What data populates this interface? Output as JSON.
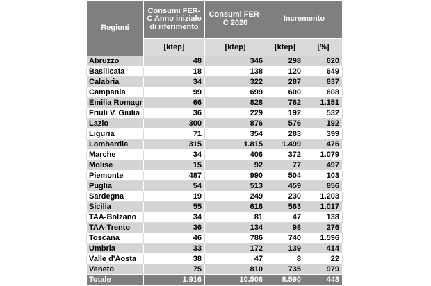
{
  "header": {
    "regioni": "Regioni",
    "consumi_base": "Consumi FER-C Anno iniziale di riferimento",
    "consumi_2020": "Consumi FER-C 2020",
    "incremento": "Incremento",
    "unit_ktep_1": "[ktep]",
    "unit_ktep_2": "[ktep]",
    "unit_ktep_3": "[ktep]",
    "unit_pct": "[%]"
  },
  "rows": [
    {
      "regione": "Abruzzo",
      "base": "48",
      "y2020": "346",
      "inc_ktep": "298",
      "inc_pct": "620"
    },
    {
      "regione": "Basilicata",
      "base": "18",
      "y2020": "138",
      "inc_ktep": "120",
      "inc_pct": "649"
    },
    {
      "regione": "Calabria",
      "base": "34",
      "y2020": "322",
      "inc_ktep": "287",
      "inc_pct": "837"
    },
    {
      "regione": "Campania",
      "base": "99",
      "y2020": "699",
      "inc_ktep": "600",
      "inc_pct": "608"
    },
    {
      "regione": "Emilia Romagna",
      "base": "66",
      "y2020": "828",
      "inc_ktep": "762",
      "inc_pct": "1.151"
    },
    {
      "regione": "Friuli V. Giulia",
      "base": "36",
      "y2020": "229",
      "inc_ktep": "192",
      "inc_pct": "532"
    },
    {
      "regione": "Lazio",
      "base": "300",
      "y2020": "876",
      "inc_ktep": "576",
      "inc_pct": "192"
    },
    {
      "regione": "Liguria",
      "base": "71",
      "y2020": "354",
      "inc_ktep": "283",
      "inc_pct": "399"
    },
    {
      "regione": "Lombardia",
      "base": "315",
      "y2020": "1.815",
      "inc_ktep": "1.499",
      "inc_pct": "476"
    },
    {
      "regione": "Marche",
      "base": "34",
      "y2020": "406",
      "inc_ktep": "372",
      "inc_pct": "1.079"
    },
    {
      "regione": "Molise",
      "base": "15",
      "y2020": "92",
      "inc_ktep": "77",
      "inc_pct": "497"
    },
    {
      "regione": "Piemonte",
      "base": "487",
      "y2020": "990",
      "inc_ktep": "504",
      "inc_pct": "103"
    },
    {
      "regione": "Puglia",
      "base": "54",
      "y2020": "513",
      "inc_ktep": "459",
      "inc_pct": "856"
    },
    {
      "regione": "Sardegna",
      "base": "19",
      "y2020": "249",
      "inc_ktep": "230",
      "inc_pct": "1.203"
    },
    {
      "regione": "Sicilia",
      "base": "55",
      "y2020": "618",
      "inc_ktep": "563",
      "inc_pct": "1.017"
    },
    {
      "regione": "TAA-Bolzano",
      "base": "34",
      "y2020": "81",
      "inc_ktep": "47",
      "inc_pct": "138"
    },
    {
      "regione": "TAA-Trento",
      "base": "36",
      "y2020": "134",
      "inc_ktep": "98",
      "inc_pct": "276"
    },
    {
      "regione": "Toscana",
      "base": "46",
      "y2020": "786",
      "inc_ktep": "740",
      "inc_pct": "1.596"
    },
    {
      "regione": "Umbria",
      "base": "33",
      "y2020": "172",
      "inc_ktep": "139",
      "inc_pct": "414"
    },
    {
      "regione": "Valle d'Aosta",
      "base": "38",
      "y2020": "47",
      "inc_ktep": "8",
      "inc_pct": "22"
    },
    {
      "regione": "Veneto",
      "base": "75",
      "y2020": "810",
      "inc_ktep": "735",
      "inc_pct": "979"
    }
  ],
  "totale": {
    "regione": "Totale",
    "base": "1.916",
    "y2020": "10.506",
    "inc_ktep": "8.590",
    "inc_pct": "448"
  }
}
